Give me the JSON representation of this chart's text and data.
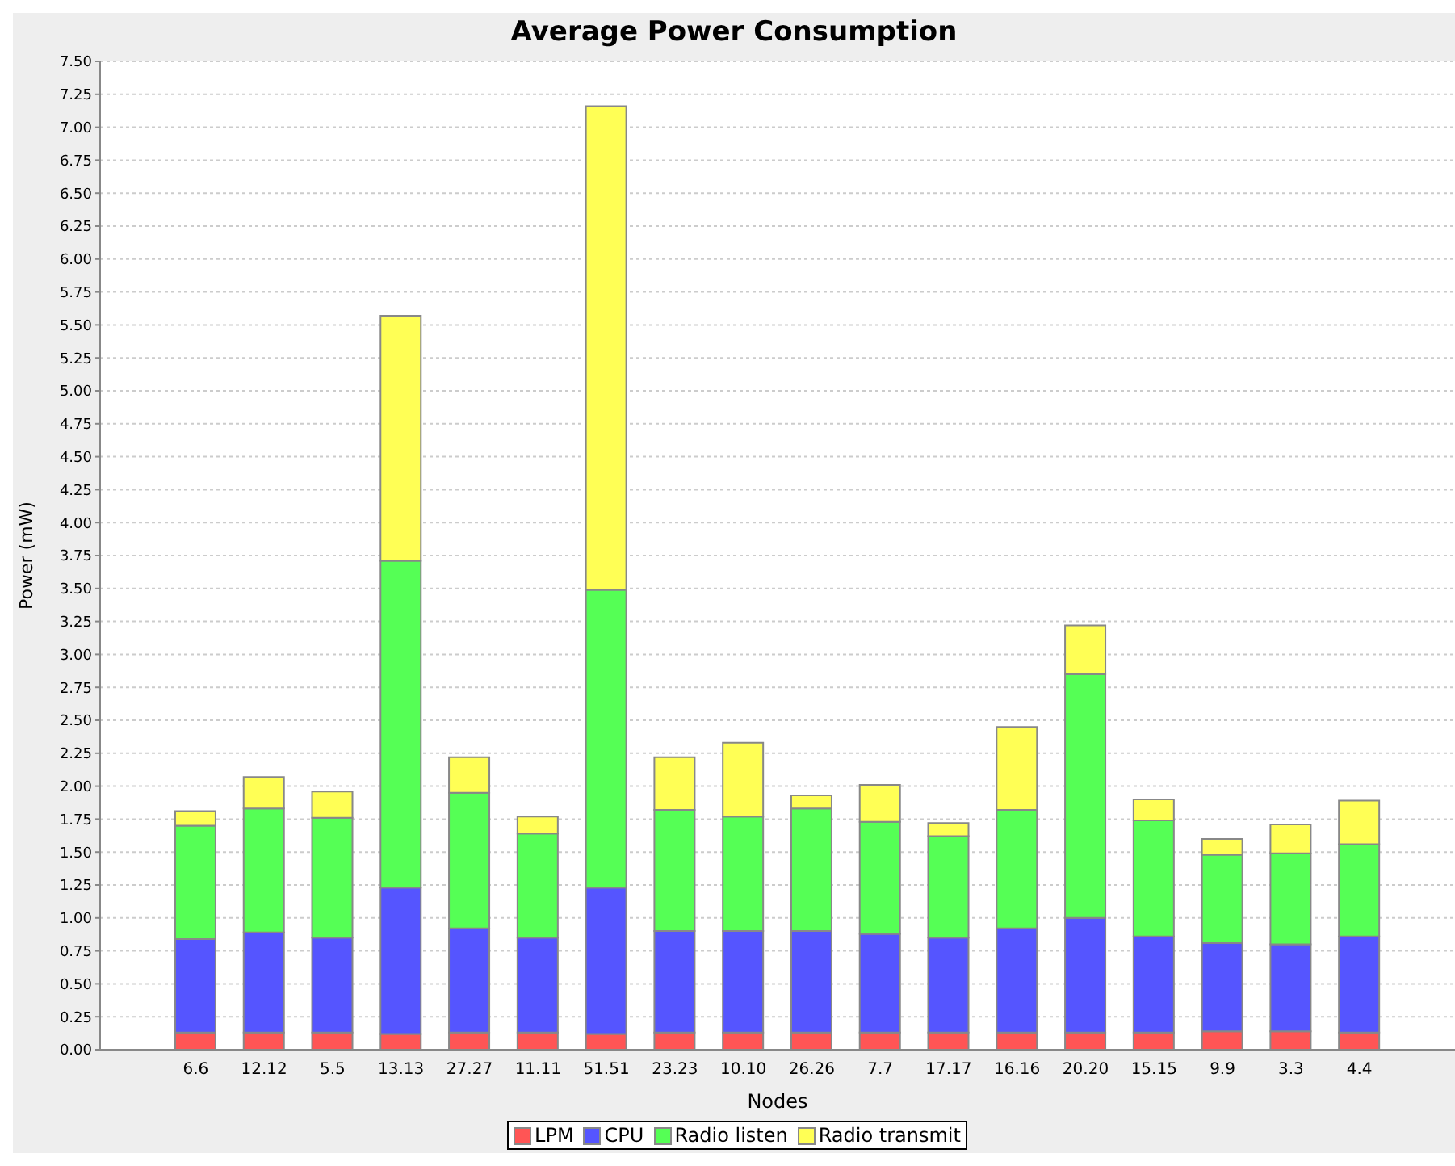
{
  "chart_data": {
    "type": "bar",
    "title": "Average Power Consumption",
    "xlabel": "Nodes",
    "ylabel": "Power (mW)",
    "stacked": true,
    "grid": "y",
    "legend": "bottom",
    "categories": [
      "6.6",
      "12.12",
      "5.5",
      "13.13",
      "27.27",
      "11.11",
      "51.51",
      "23.23",
      "10.10",
      "26.26",
      "7.7",
      "17.17",
      "16.16",
      "20.20",
      "15.15",
      "9.9",
      "3.3",
      "4.4"
    ],
    "series": [
      {
        "name": "LPM",
        "color": "#ff5555",
        "values": [
          0.13,
          0.13,
          0.13,
          0.12,
          0.13,
          0.13,
          0.12,
          0.13,
          0.13,
          0.13,
          0.13,
          0.13,
          0.13,
          0.13,
          0.13,
          0.14,
          0.14,
          0.13
        ]
      },
      {
        "name": "CPU",
        "color": "#5555ff",
        "values": [
          0.71,
          0.76,
          0.72,
          1.11,
          0.79,
          0.72,
          1.11,
          0.77,
          0.77,
          0.77,
          0.75,
          0.72,
          0.79,
          0.87,
          0.73,
          0.67,
          0.66,
          0.73
        ]
      },
      {
        "name": "Radio listen",
        "color": "#55ff55",
        "values": [
          0.86,
          0.94,
          0.91,
          2.48,
          1.03,
          0.79,
          2.26,
          0.92,
          0.87,
          0.93,
          0.85,
          0.77,
          0.9,
          1.85,
          0.88,
          0.67,
          0.69,
          0.7
        ]
      },
      {
        "name": "Radio transmit",
        "color": "#ffff55",
        "values": [
          0.11,
          0.24,
          0.2,
          1.86,
          0.27,
          0.13,
          3.67,
          0.4,
          0.56,
          0.1,
          0.28,
          0.1,
          0.63,
          0.37,
          0.16,
          0.12,
          0.22,
          0.33
        ]
      }
    ],
    "ylim": [
      0,
      7.5
    ],
    "yticks": [
      {
        "value": 0,
        "label": "0.00"
      },
      {
        "value": 0.25,
        "label": "0.25"
      },
      {
        "value": 0.5,
        "label": "0.50"
      },
      {
        "value": 0.75,
        "label": "0.75"
      },
      {
        "value": 1,
        "label": "1.00"
      },
      {
        "value": 1.25,
        "label": "1.25"
      },
      {
        "value": 1.5,
        "label": "1.50"
      },
      {
        "value": 1.75,
        "label": "1.75"
      },
      {
        "value": 2,
        "label": "2.00"
      },
      {
        "value": 2.25,
        "label": "2.25"
      },
      {
        "value": 2.5,
        "label": "2.50"
      },
      {
        "value": 2.75,
        "label": "2.75"
      },
      {
        "value": 3,
        "label": "3.00"
      },
      {
        "value": 3.25,
        "label": "3.25"
      },
      {
        "value": 3.5,
        "label": "3.50"
      },
      {
        "value": 3.75,
        "label": "3.75"
      },
      {
        "value": 4,
        "label": "4.00"
      },
      {
        "value": 4.25,
        "label": "4.25"
      },
      {
        "value": 4.5,
        "label": "4.50"
      },
      {
        "value": 4.75,
        "label": "4.75"
      },
      {
        "value": 5,
        "label": "5.00"
      },
      {
        "value": 5.25,
        "label": "5.25"
      },
      {
        "value": 5.5,
        "label": "5.50"
      },
      {
        "value": 5.75,
        "label": "5.75"
      },
      {
        "value": 6,
        "label": "6.00"
      },
      {
        "value": 6.25,
        "label": "6.25"
      },
      {
        "value": 6.5,
        "label": "6.50"
      },
      {
        "value": 6.75,
        "label": "6.75"
      },
      {
        "value": 7,
        "label": "7.00"
      },
      {
        "value": 7.25,
        "label": "7.25"
      },
      {
        "value": 7.5,
        "label": "7.50"
      }
    ]
  }
}
